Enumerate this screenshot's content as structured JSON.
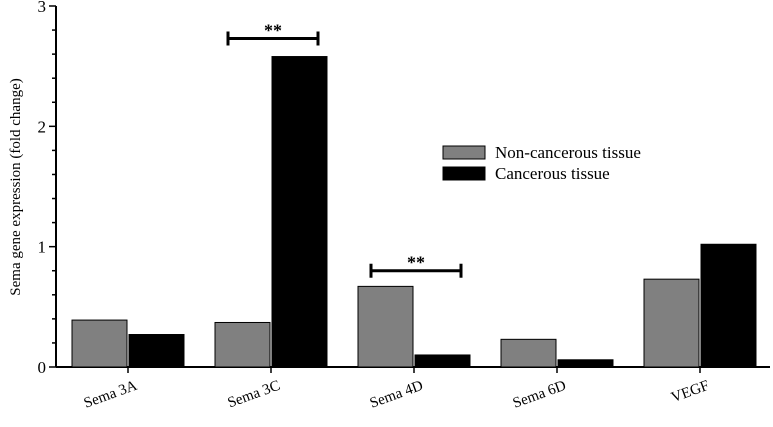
{
  "chart_data": {
    "type": "bar",
    "title": "",
    "xlabel": "",
    "ylabel": "Sema gene expression (fold change)",
    "ylim": [
      0,
      3
    ],
    "yticks": [
      "0",
      "1",
      "2",
      "3"
    ],
    "categories": [
      "Sema 3A",
      "Sema 3C",
      "Sema 4D",
      "Sema 6D",
      "VEGF"
    ],
    "series": [
      {
        "name": "Non-cancerous tissue",
        "color": "#808080",
        "values": [
          0.39,
          0.37,
          0.67,
          0.23,
          0.73
        ]
      },
      {
        "name": "Cancerous tissue",
        "color": "#000000",
        "values": [
          0.27,
          2.58,
          0.1,
          0.06,
          1.02
        ]
      }
    ],
    "annotations": [
      {
        "category": "Sema 3C",
        "text": "**",
        "y": 2.73
      },
      {
        "category": "Sema 4D",
        "text": "**",
        "y": 0.8
      }
    ],
    "legend_position": "center-right",
    "grid": false
  }
}
